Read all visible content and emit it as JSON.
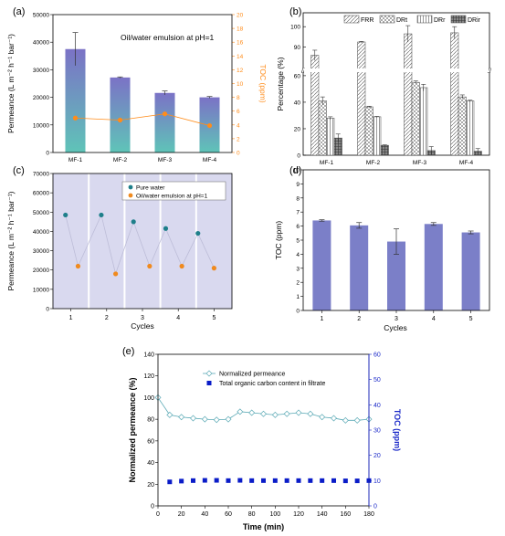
{
  "chart_data": [
    {
      "panel": "(a)",
      "type": "bar",
      "annotation": "Oil/water emulsion at pH=1",
      "categories": [
        "MF-1",
        "MF-2",
        "MF-3",
        "MF-4"
      ],
      "series": [
        {
          "name": "Permeance",
          "axis": "left",
          "values": [
            37500,
            27200,
            21600,
            20000
          ],
          "errors": [
            6000,
            200,
            700,
            300
          ]
        },
        {
          "name": "TOC",
          "axis": "right",
          "type": "line",
          "values": [
            5.0,
            4.7,
            5.6,
            3.9
          ]
        }
      ],
      "ylabel": "Permeance (L m⁻² h⁻¹ bar⁻¹)",
      "ylabel_right": "TOC (ppm)",
      "ylim": [
        0,
        50000
      ],
      "ylim_right": [
        0,
        20
      ],
      "yticks": [
        "0",
        "10000",
        "20000",
        "30000",
        "40000",
        "50000"
      ],
      "yticks_right": [
        "0",
        "2",
        "4",
        "6",
        "8",
        "10",
        "12",
        "14",
        "16",
        "18",
        "20"
      ],
      "colors": {
        "bar_top": "#7b72c6",
        "bar_bottom": "#5fc4b8",
        "line": "#ff8c1a"
      }
    },
    {
      "panel": "(b)",
      "type": "bar",
      "categories": [
        "MF-1",
        "MF-2",
        "MF-3",
        "MF-4"
      ],
      "series": [
        {
          "name": "FRR",
          "values": [
            86,
            92.5,
            96.5,
            97
          ],
          "errors": [
            2.5,
            0.3,
            4,
            3
          ]
        },
        {
          "name": "DRt",
          "values": [
            41,
            36.5,
            55,
            44
          ],
          "errors": [
            3,
            0.5,
            1,
            1.5
          ]
        },
        {
          "name": "DRr",
          "values": [
            28,
            29,
            51,
            41
          ],
          "errors": [
            1,
            0.3,
            2.5,
            0.5
          ]
        },
        {
          "name": "DRir",
          "values": [
            13,
            7.5,
            3.5,
            3
          ],
          "errors": [
            3,
            0.3,
            3,
            2
          ]
        }
      ],
      "ylabel": "Percentage (%)",
      "broken_axis": true,
      "yticks_lower": [
        "0",
        "20",
        "40",
        "60"
      ],
      "yticks_upper": [
        "90",
        "100"
      ],
      "ylim_lower": [
        0,
        62
      ],
      "ylim_upper": [
        80,
        105
      ],
      "legend_placement": "top"
    },
    {
      "panel": "(c)",
      "type": "scatter",
      "x": [
        1,
        1.5,
        2,
        2.4,
        2.8,
        3.2,
        3.6,
        4.0,
        4.4,
        4.8
      ],
      "series": [
        {
          "name": "Pure water",
          "x": [
            0.85,
            1.85,
            2.75,
            3.65,
            4.55
          ],
          "values": [
            48500,
            48500,
            45000,
            41500,
            39000
          ]
        },
        {
          "name": "Oil/water emulsion at pH=1",
          "x": [
            1.2,
            2.25,
            3.2,
            4.1,
            5.0
          ],
          "values": [
            22000,
            18000,
            22000,
            22000,
            21000
          ]
        }
      ],
      "xticks": [
        "1",
        "2",
        "3",
        "4",
        "5"
      ],
      "xlabel": "Cycles",
      "ylabel": "Permeance (L m⁻² h⁻¹ bar⁻¹)",
      "ylim": [
        0,
        70000
      ],
      "yticks": [
        "0",
        "10000",
        "20000",
        "30000",
        "40000",
        "50000",
        "60000",
        "70000"
      ],
      "legend_placement": "top-right",
      "colors": {
        "pure": "#1e7f8a",
        "oil": "#f08a1e",
        "background": "#d9d9ef",
        "line": "#bdbdd8"
      }
    },
    {
      "panel": "(d)",
      "type": "bar",
      "categories": [
        "1",
        "2",
        "3",
        "4",
        "5"
      ],
      "values": [
        6.4,
        6.05,
        4.9,
        6.15,
        5.55
      ],
      "errors": [
        0.05,
        0.2,
        0.9,
        0.1,
        0.1
      ],
      "xlabel": "Cycles",
      "ylabel": "TOC (ppm)",
      "ylim": [
        0,
        10
      ],
      "yticks": [
        "0",
        "1",
        "2",
        "3",
        "4",
        "5",
        "6",
        "7",
        "8",
        "9",
        "10"
      ],
      "colors": {
        "bar": "#7b7fc8"
      }
    },
    {
      "panel": "(e)",
      "type": "line",
      "x": [
        0,
        10,
        20,
        30,
        40,
        50,
        60,
        70,
        80,
        90,
        100,
        110,
        120,
        130,
        140,
        150,
        160,
        170,
        180
      ],
      "series": [
        {
          "name": "Normalized permeance",
          "axis": "left",
          "values": [
            100,
            84,
            82,
            81,
            80,
            79.5,
            80,
            87,
            86,
            85,
            84,
            85,
            86,
            85,
            82,
            81,
            79,
            79,
            80
          ]
        },
        {
          "name": "Total organic  carbon content in filtrate",
          "axis": "right",
          "x": [
            10,
            20,
            30,
            40,
            50,
            60,
            70,
            80,
            90,
            100,
            110,
            120,
            130,
            140,
            150,
            160,
            170,
            180
          ],
          "values": [
            9.5,
            9.8,
            10.0,
            10.1,
            10.1,
            10.0,
            10.1,
            10.0,
            10.0,
            10.0,
            10.0,
            10.0,
            10.0,
            10.0,
            10.0,
            9.9,
            9.9,
            10.0
          ]
        }
      ],
      "xlabel": "Time (min)",
      "ylabel": "Normalized permeance (%)",
      "ylabel_right": "TOC (ppm)",
      "xlim": [
        0,
        180
      ],
      "ylim": [
        0,
        140
      ],
      "ylim_right": [
        0,
        60
      ],
      "xticks": [
        "0",
        "20",
        "40",
        "60",
        "80",
        "100",
        "120",
        "140",
        "160",
        "180"
      ],
      "yticks": [
        "0",
        "20",
        "40",
        "60",
        "80",
        "100",
        "120",
        "140"
      ],
      "yticks_right": [
        "0",
        "10",
        "20",
        "30",
        "40",
        "50",
        "60"
      ],
      "legend_placement": "top-left",
      "colors": {
        "perm": "#5aa9b5",
        "toc": "#0a1cc8",
        "right_axis": "#1a28c8"
      }
    }
  ]
}
